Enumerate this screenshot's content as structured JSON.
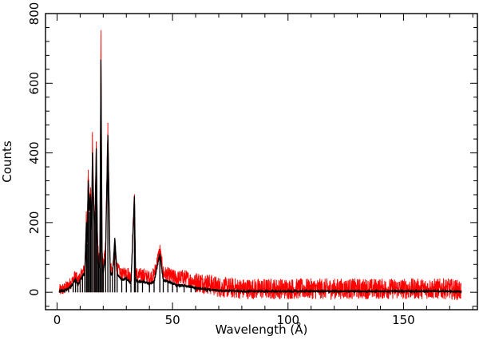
{
  "chart_data": {
    "type": "line",
    "title": "",
    "xlabel": "Wavelength (Å)",
    "ylabel": "Counts",
    "xlim": [
      -5,
      182
    ],
    "ylim": [
      -50,
      800
    ],
    "xticks": [
      0,
      50,
      100,
      150
    ],
    "yticks": [
      0,
      200,
      400,
      600,
      800
    ],
    "xtick_labels": [
      "0",
      "50",
      "100",
      "150"
    ],
    "ytick_labels": [
      "0",
      "200",
      "400",
      "600",
      "800"
    ],
    "grid": false,
    "legend": "none",
    "series": [
      {
        "color": "#ff0000",
        "style": "noisy data histogram",
        "x": [
          1,
          3,
          5,
          7,
          8,
          9,
          10,
          11,
          12,
          12.7,
          13,
          13.5,
          14,
          14.5,
          15,
          15.3,
          16,
          16.5,
          17,
          17.5,
          18,
          18.5,
          19,
          19.5,
          20,
          21,
          22,
          23,
          24,
          25,
          26,
          28,
          30,
          32,
          33.5,
          34,
          35,
          37,
          40,
          42,
          44.5,
          46,
          48,
          50,
          52,
          55,
          58,
          60,
          65,
          70,
          80,
          90,
          100,
          110,
          120,
          130,
          140,
          150,
          160,
          170,
          175
        ],
        "values": [
          5,
          10,
          20,
          35,
          50,
          30,
          45,
          55,
          70,
          220,
          160,
          350,
          250,
          300,
          200,
          450,
          220,
          250,
          430,
          150,
          100,
          90,
          735,
          120,
          70,
          130,
          485,
          80,
          60,
          110,
          70,
          50,
          60,
          40,
          280,
          60,
          45,
          50,
          40,
          50,
          120,
          55,
          50,
          45,
          40,
          45,
          35,
          30,
          25,
          15,
          10,
          10,
          10,
          10,
          10,
          10,
          10,
          10,
          10,
          10,
          5
        ]
      },
      {
        "color": "#000000",
        "style": "model",
        "x": [
          1,
          3,
          5,
          7,
          8,
          9,
          10,
          11,
          12,
          12.7,
          13,
          13.5,
          14,
          14.5,
          15,
          15.3,
          16,
          16.5,
          17,
          17.5,
          18,
          18.5,
          19,
          19.5,
          20,
          21,
          22,
          23,
          24,
          25,
          26,
          28,
          30,
          32,
          33.5,
          34,
          35,
          37,
          40,
          42,
          44.5,
          46,
          48,
          50,
          52,
          55,
          58,
          60,
          65,
          70,
          80,
          90,
          100,
          110,
          120,
          130,
          140,
          150,
          160,
          170,
          175
        ],
        "values": [
          2,
          5,
          10,
          25,
          40,
          20,
          35,
          45,
          55,
          200,
          140,
          320,
          230,
          280,
          180,
          400,
          200,
          230,
          410,
          130,
          80,
          70,
          665,
          100,
          55,
          110,
          450,
          60,
          45,
          155,
          55,
          35,
          40,
          25,
          275,
          40,
          30,
          30,
          25,
          30,
          110,
          35,
          30,
          25,
          20,
          20,
          15,
          12,
          8,
          5,
          3,
          3,
          3,
          3,
          3,
          3,
          3,
          3,
          3,
          3,
          2
        ]
      }
    ]
  }
}
